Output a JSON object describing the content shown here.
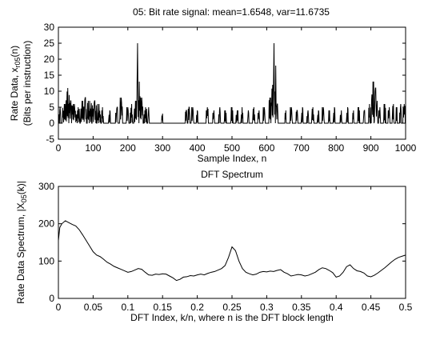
{
  "figure": {
    "background": "#ffffff",
    "line_color": "#000000"
  },
  "chart_data": [
    {
      "type": "line",
      "title": "05: Bit rate signal: mean=1.6548, var=11.6735",
      "xlabel": "Sample Index, n",
      "ylabel_line1": "Rate Data, x",
      "ylabel_sub": "r05",
      "ylabel_suffix": "(n)",
      "ylabel_line2": "(Bits per instruction)",
      "xlim": [
        0,
        1000
      ],
      "ylim": [
        -5,
        30
      ],
      "xticks": [
        0,
        100,
        200,
        300,
        400,
        500,
        600,
        700,
        800,
        900,
        1000
      ],
      "yticks": [
        -5,
        0,
        5,
        10,
        15,
        20,
        25,
        30
      ],
      "grid": false,
      "series": [
        {
          "baseline": 0,
          "bursts": [
            {
              "start": 2,
              "end": 8,
              "peak": 5
            },
            {
              "start": 12,
              "end": 22,
              "peak": 6
            },
            {
              "start": 22,
              "end": 32,
              "peak": 11
            },
            {
              "start": 32,
              "end": 40,
              "peak": 7
            },
            {
              "start": 40,
              "end": 52,
              "peak": 6
            },
            {
              "start": 52,
              "end": 62,
              "peak": 5
            },
            {
              "start": 64,
              "end": 72,
              "peak": 7
            },
            {
              "start": 72,
              "end": 82,
              "peak": 8
            },
            {
              "start": 84,
              "end": 96,
              "peak": 7
            },
            {
              "start": 98,
              "end": 110,
              "peak": 7
            },
            {
              "start": 112,
              "end": 122,
              "peak": 6
            },
            {
              "start": 124,
              "end": 130,
              "peak": 5
            },
            {
              "start": 145,
              "end": 150,
              "peak": 4
            },
            {
              "start": 165,
              "end": 172,
              "peak": 5
            },
            {
              "start": 177,
              "end": 185,
              "peak": 8
            },
            {
              "start": 196,
              "end": 203,
              "peak": 5
            },
            {
              "start": 207,
              "end": 214,
              "peak": 6
            },
            {
              "start": 218,
              "end": 226,
              "peak": 7
            },
            {
              "start": 226,
              "end": 230,
              "peak": 25
            },
            {
              "start": 230,
              "end": 236,
              "peak": 13
            },
            {
              "start": 236,
              "end": 244,
              "peak": 8
            },
            {
              "start": 247,
              "end": 255,
              "peak": 5
            },
            {
              "start": 258,
              "end": 262,
              "peak": 5
            },
            {
              "start": 298,
              "end": 301,
              "peak": 3
            },
            {
              "start": 366,
              "end": 371,
              "peak": 4
            },
            {
              "start": 374,
              "end": 380,
              "peak": 5
            },
            {
              "start": 383,
              "end": 390,
              "peak": 5
            },
            {
              "start": 398,
              "end": 402,
              "peak": 4
            },
            {
              "start": 425,
              "end": 432,
              "peak": 5
            },
            {
              "start": 445,
              "end": 450,
              "peak": 4
            },
            {
              "start": 462,
              "end": 468,
              "peak": 5
            },
            {
              "start": 478,
              "end": 484,
              "peak": 4
            },
            {
              "start": 497,
              "end": 503,
              "peak": 5
            },
            {
              "start": 512,
              "end": 518,
              "peak": 4
            },
            {
              "start": 526,
              "end": 532,
              "peak": 5
            },
            {
              "start": 545,
              "end": 549,
              "peak": 4
            },
            {
              "start": 560,
              "end": 566,
              "peak": 5
            },
            {
              "start": 575,
              "end": 580,
              "peak": 4
            },
            {
              "start": 590,
              "end": 596,
              "peak": 5
            },
            {
              "start": 607,
              "end": 614,
              "peak": 8
            },
            {
              "start": 614,
              "end": 619,
              "peak": 12
            },
            {
              "start": 619,
              "end": 623,
              "peak": 25
            },
            {
              "start": 623,
              "end": 628,
              "peak": 18
            },
            {
              "start": 628,
              "end": 634,
              "peak": 6
            },
            {
              "start": 652,
              "end": 657,
              "peak": 4
            },
            {
              "start": 668,
              "end": 674,
              "peak": 5
            },
            {
              "start": 685,
              "end": 690,
              "peak": 4
            },
            {
              "start": 700,
              "end": 705,
              "peak": 5
            },
            {
              "start": 716,
              "end": 721,
              "peak": 4
            },
            {
              "start": 730,
              "end": 736,
              "peak": 5
            },
            {
              "start": 746,
              "end": 751,
              "peak": 4
            },
            {
              "start": 760,
              "end": 766,
              "peak": 5
            },
            {
              "start": 778,
              "end": 783,
              "peak": 4
            },
            {
              "start": 792,
              "end": 797,
              "peak": 5
            },
            {
              "start": 812,
              "end": 817,
              "peak": 4
            },
            {
              "start": 830,
              "end": 835,
              "peak": 5
            },
            {
              "start": 848,
              "end": 852,
              "peak": 4
            },
            {
              "start": 862,
              "end": 868,
              "peak": 5
            },
            {
              "start": 878,
              "end": 883,
              "peak": 4
            },
            {
              "start": 893,
              "end": 898,
              "peak": 6
            },
            {
              "start": 900,
              "end": 905,
              "peak": 9
            },
            {
              "start": 905,
              "end": 910,
              "peak": 13
            },
            {
              "start": 910,
              "end": 915,
              "peak": 11
            },
            {
              "start": 915,
              "end": 920,
              "peak": 7
            },
            {
              "start": 923,
              "end": 928,
              "peak": 5
            },
            {
              "start": 937,
              "end": 943,
              "peak": 6
            },
            {
              "start": 950,
              "end": 955,
              "peak": 5
            },
            {
              "start": 962,
              "end": 967,
              "peak": 6
            },
            {
              "start": 972,
              "end": 977,
              "peak": 5
            },
            {
              "start": 983,
              "end": 988,
              "peak": 6
            },
            {
              "start": 992,
              "end": 999,
              "peak": 6
            }
          ]
        }
      ]
    },
    {
      "type": "line",
      "title": "DFT Spectrum",
      "xlabel": "DFT Index, k/n, where n is the DFT block length",
      "ylabel_line1": "Rate Data Spectrum, |X",
      "ylabel_sub": "05",
      "ylabel_suffix": "(k)|",
      "xlim": [
        0,
        0.5
      ],
      "ylim": [
        0,
        300
      ],
      "xticks": [
        0,
        0.05,
        0.1,
        0.15,
        0.2,
        0.25,
        0.3,
        0.35,
        0.4,
        0.45,
        0.5
      ],
      "xtick_labels": [
        "0",
        "0.05",
        "0.1",
        "0.15",
        "0.2",
        "0.25",
        "0.3",
        "0.35",
        "0.4",
        "0.45",
        "0.5"
      ],
      "yticks": [
        0,
        100,
        200,
        300
      ],
      "grid": false,
      "series": [
        {
          "x": [
            0,
            0.002,
            0.005,
            0.01,
            0.015,
            0.02,
            0.025,
            0.03,
            0.035,
            0.04,
            0.045,
            0.05,
            0.055,
            0.06,
            0.065,
            0.07,
            0.075,
            0.08,
            0.085,
            0.09,
            0.095,
            0.1,
            0.105,
            0.11,
            0.115,
            0.12,
            0.125,
            0.13,
            0.135,
            0.14,
            0.145,
            0.15,
            0.155,
            0.16,
            0.165,
            0.17,
            0.175,
            0.18,
            0.185,
            0.19,
            0.195,
            0.2,
            0.205,
            0.21,
            0.215,
            0.22,
            0.225,
            0.23,
            0.235,
            0.24,
            0.245,
            0.25,
            0.255,
            0.26,
            0.265,
            0.27,
            0.275,
            0.28,
            0.285,
            0.29,
            0.295,
            0.3,
            0.305,
            0.31,
            0.315,
            0.32,
            0.325,
            0.33,
            0.335,
            0.34,
            0.345,
            0.35,
            0.355,
            0.36,
            0.365,
            0.37,
            0.375,
            0.38,
            0.385,
            0.39,
            0.395,
            0.4,
            0.405,
            0.41,
            0.415,
            0.42,
            0.425,
            0.43,
            0.435,
            0.44,
            0.445,
            0.45,
            0.455,
            0.46,
            0.465,
            0.47,
            0.475,
            0.48,
            0.485,
            0.49,
            0.495,
            0.5
          ],
          "y": [
            155,
            190,
            200,
            208,
            203,
            198,
            194,
            184,
            170,
            155,
            140,
            125,
            116,
            112,
            105,
            97,
            92,
            86,
            82,
            78,
            74,
            70,
            72,
            76,
            80,
            78,
            70,
            63,
            62,
            65,
            64,
            66,
            65,
            60,
            55,
            48,
            51,
            57,
            58,
            61,
            60,
            63,
            65,
            63,
            67,
            70,
            72,
            76,
            80,
            88,
            110,
            138,
            128,
            100,
            80,
            70,
            66,
            63,
            65,
            70,
            72,
            71,
            73,
            72,
            75,
            77,
            70,
            66,
            60,
            62,
            64,
            63,
            60,
            62,
            66,
            70,
            77,
            82,
            80,
            75,
            69,
            57,
            60,
            70,
            85,
            90,
            80,
            74,
            72,
            68,
            60,
            58,
            62,
            68,
            75,
            82,
            90,
            98,
            105,
            110,
            113,
            116
          ]
        }
      ]
    }
  ]
}
